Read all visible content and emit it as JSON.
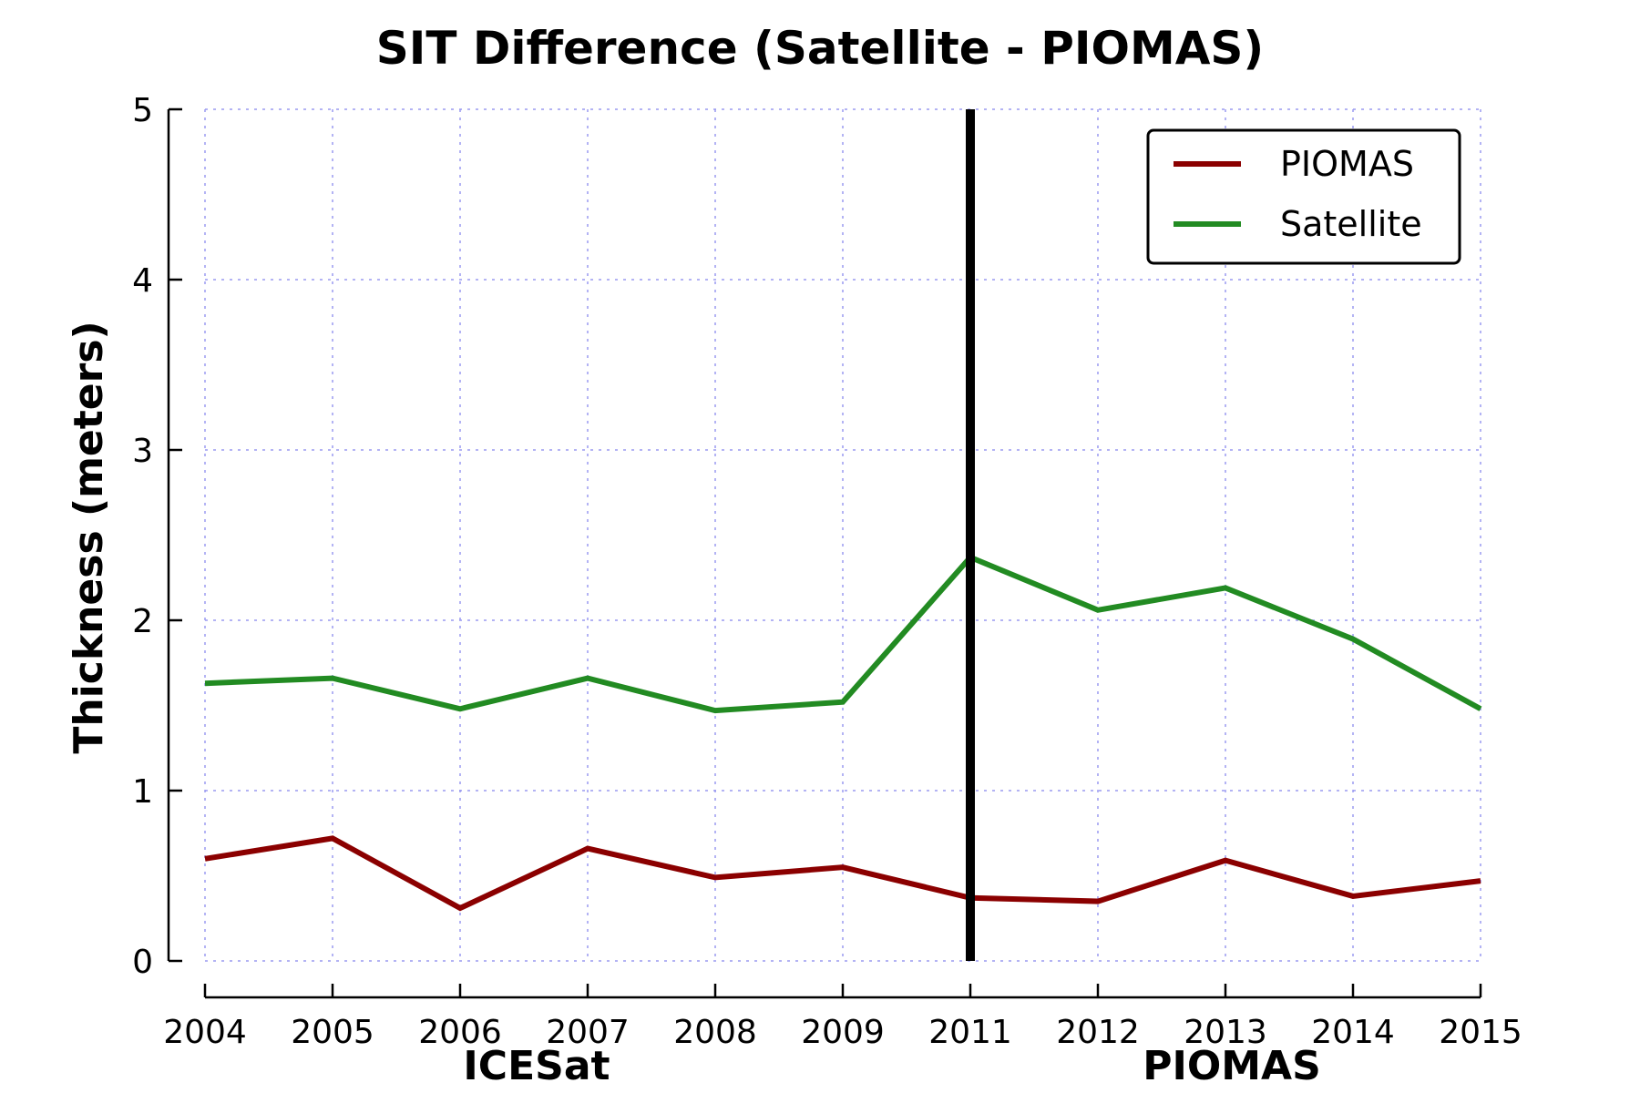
{
  "chart_data": {
    "type": "line",
    "title": "SIT Difference (Satellite - PIOMAS)",
    "xlabel": "",
    "ylabel": "Thickness (meters)",
    "categories": [
      "2004",
      "2005",
      "2006",
      "2007",
      "2008",
      "2009",
      "2011",
      "2012",
      "2013",
      "2014",
      "2015"
    ],
    "yticks": [
      "0",
      "1",
      "2",
      "3",
      "4",
      "5"
    ],
    "ylim": [
      0,
      5
    ],
    "grid": true,
    "legend_position": "top-right",
    "series": [
      {
        "name": "PIOMAS",
        "color": "#8b0000",
        "values": [
          0.6,
          0.72,
          0.31,
          0.66,
          0.49,
          0.55,
          0.37,
          0.35,
          0.59,
          0.38,
          0.47
        ]
      },
      {
        "name": "Satellite",
        "color": "#228b22",
        "values": [
          1.63,
          1.66,
          1.48,
          1.66,
          1.47,
          1.52,
          2.37,
          2.06,
          2.19,
          1.89,
          1.48
        ]
      }
    ],
    "divider": {
      "at_category": "2011",
      "color": "#000000"
    },
    "section_labels": [
      {
        "text": "ICESat",
        "category": "2006.5"
      },
      {
        "text": "PIOMAS",
        "category": "2012.5"
      }
    ]
  }
}
